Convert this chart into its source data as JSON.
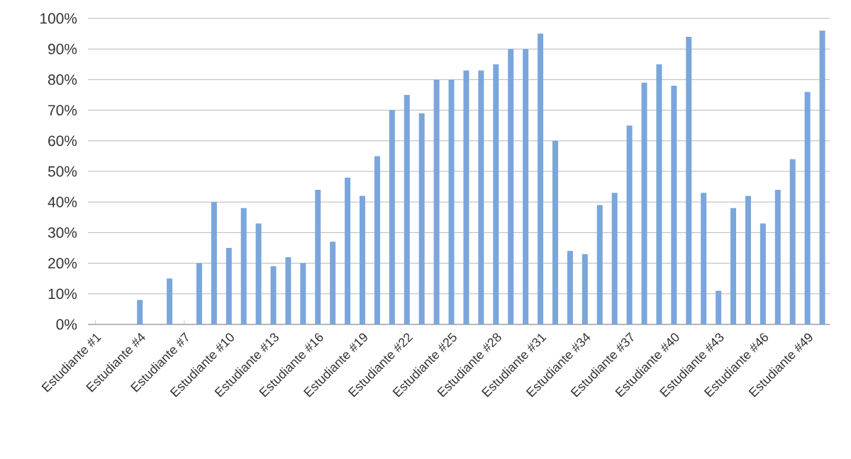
{
  "chart_data": {
    "type": "bar",
    "categories": [
      "Estudiante #1",
      null,
      null,
      "Estudiante #4",
      null,
      null,
      "Estudiante #7",
      null,
      null,
      "Estudiante #10",
      null,
      null,
      "Estudiante #13",
      null,
      null,
      "Estudiante #16",
      null,
      null,
      "Estudiante #19",
      null,
      null,
      "Estudiante #22",
      null,
      null,
      "Estudiante #25",
      null,
      null,
      "Estudiante #28",
      null,
      null,
      "Estudiante #31",
      null,
      null,
      "Estudiante #34",
      null,
      null,
      "Estudiante #37",
      null,
      null,
      "Estudiante #40",
      null,
      null,
      "Estudiante #43",
      null,
      null,
      "Estudiante #46",
      null,
      null,
      "Estudiante #49",
      null
    ],
    "values": [
      0,
      0,
      0,
      8,
      0,
      15,
      0,
      20,
      40,
      25,
      38,
      33,
      19,
      22,
      20,
      44,
      27,
      48,
      42,
      55,
      70,
      75,
      69,
      80,
      80,
      83,
      83,
      85,
      90,
      90,
      95,
      60,
      24,
      23,
      39,
      43,
      65,
      79,
      85,
      78,
      94,
      43,
      11,
      38,
      42,
      33,
      44,
      54,
      76,
      96
    ],
    "color": "#7aa6dc",
    "ylim": [
      0,
      100
    ],
    "yticks": [
      {
        "value": 0,
        "label": "0%"
      },
      {
        "value": 10,
        "label": "10%"
      },
      {
        "value": 20,
        "label": "20%"
      },
      {
        "value": 30,
        "label": "30%"
      },
      {
        "value": 40,
        "label": "40%"
      },
      {
        "value": 50,
        "label": "50%"
      },
      {
        "value": 60,
        "label": "60%"
      },
      {
        "value": 70,
        "label": "70%"
      },
      {
        "value": 80,
        "label": "80%"
      },
      {
        "value": 90,
        "label": "90%"
      },
      {
        "value": 100,
        "label": "100%"
      }
    ],
    "grid": "y"
  }
}
